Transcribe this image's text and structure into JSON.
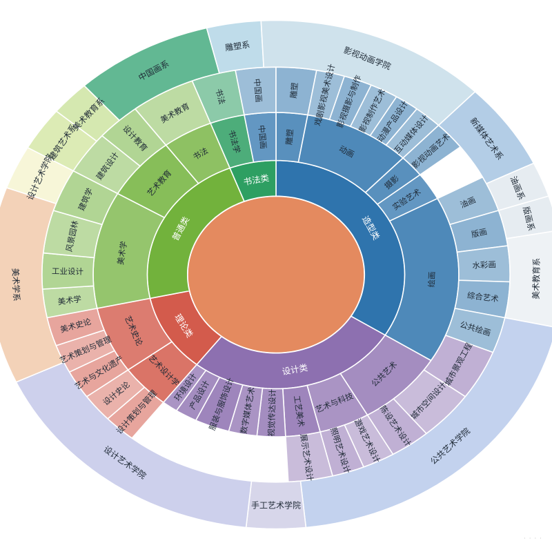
{
  "chart_data": {
    "type": "sunburst",
    "center_color": "#e48a5f",
    "level1": [
      {
        "id": "zaoxing",
        "label": "造型类",
        "color": "#2f74ad"
      },
      {
        "id": "sheji",
        "label": "设计类",
        "color": "#8d70b0"
      },
      {
        "id": "lilun",
        "label": "理论类",
        "color": "#d35b4c"
      },
      {
        "id": "putong",
        "label": "普通类",
        "color": "#72b23c"
      },
      {
        "id": "shufa",
        "label": "书法类",
        "color": "#2e9f62"
      }
    ],
    "level2": [
      {
        "parent": "shufa",
        "label": "书法学"
      },
      {
        "parent": "zaoxing",
        "label": "雕塑"
      },
      {
        "parent": "zaoxing",
        "label": "中国画"
      },
      {
        "parent": "zaoxing",
        "label": "动画"
      },
      {
        "parent": "zaoxing",
        "label": "摄影"
      },
      {
        "parent": "zaoxing",
        "label": "实验艺术"
      },
      {
        "parent": "zaoxing",
        "label": "绘画"
      },
      {
        "parent": "sheji",
        "label": "公共艺术"
      },
      {
        "parent": "sheji",
        "label": "艺术与科技"
      },
      {
        "parent": "sheji",
        "label": "工艺美术"
      },
      {
        "parent": "sheji",
        "label": "视觉传达设计"
      },
      {
        "parent": "sheji",
        "label": "数字媒体艺术"
      },
      {
        "parent": "sheji",
        "label": "服装与服饰设计"
      },
      {
        "parent": "sheji",
        "label": "产品设计"
      },
      {
        "parent": "sheji",
        "label": "环境设计"
      },
      {
        "parent": "lilun",
        "label": "艺术设计学"
      },
      {
        "parent": "lilun",
        "label": "艺术史论"
      },
      {
        "parent": "putong",
        "label": "美术学"
      },
      {
        "parent": "putong",
        "label": "艺术教育"
      },
      {
        "parent": "putong",
        "label": "书法"
      }
    ],
    "level3": [
      {
        "label": "书法"
      },
      {
        "label": "中国画"
      },
      {
        "label": "雕塑"
      },
      {
        "label": "戏剧影视美术设计"
      },
      {
        "label": "影视摄影与制作"
      },
      {
        "label": "影视制作艺术"
      },
      {
        "label": "动漫产品设计"
      },
      {
        "label": "互动媒体设计"
      },
      {
        "label": "影视动画艺术"
      },
      {
        "label": "油画"
      },
      {
        "label": "版画"
      },
      {
        "label": "水彩画"
      },
      {
        "label": "综合艺术"
      },
      {
        "label": "公共绘画"
      },
      {
        "label": "城市景观工程"
      },
      {
        "label": "城市空间设计"
      },
      {
        "label": "陈设艺术设计"
      },
      {
        "label": "游戏艺术设计"
      },
      {
        "label": "照明艺术设计"
      },
      {
        "label": "展示艺术设计"
      },
      {
        "label": "设计策划与管理"
      },
      {
        "label": "设计史论"
      },
      {
        "label": "艺术与文化遗产"
      },
      {
        "label": "艺术策划与管理"
      },
      {
        "label": "美术史论"
      },
      {
        "label": "美术学"
      },
      {
        "label": "工业设计"
      },
      {
        "label": "风景园林"
      },
      {
        "label": "建筑学"
      },
      {
        "label": "建筑设计"
      },
      {
        "label": "设计教育"
      },
      {
        "label": "美术教育"
      }
    ],
    "level4": [
      {
        "label": "中国画系",
        "color": "#62b893"
      },
      {
        "label": "雕塑系",
        "color": "#bfdcea"
      },
      {
        "label": "影视动画学院",
        "color": "#cfe2ec"
      },
      {
        "label": "新媒体艺术系",
        "color": "#b3cde6"
      },
      {
        "label": "油画系",
        "color": "#e6ecf1"
      },
      {
        "label": "版画系",
        "color": "#e6ecf1"
      },
      {
        "label": "美术教育系",
        "color": "#eef2f5"
      },
      {
        "label": "公共艺术学院",
        "color": "#c3d2ee"
      },
      {
        "label": "手工艺术学院",
        "color": "#d7d6ea"
      },
      {
        "label": "设计艺术学院",
        "color": "#cdd0ec"
      },
      {
        "label": "美术学系",
        "color": "#f3d2b8"
      },
      {
        "label": "设计艺术学院",
        "color": "#f7f6d8"
      },
      {
        "label": "建筑艺术系",
        "color": "#dcebb5"
      },
      {
        "label": "美术教育系",
        "color": "#d5e8b0"
      }
    ]
  }
}
